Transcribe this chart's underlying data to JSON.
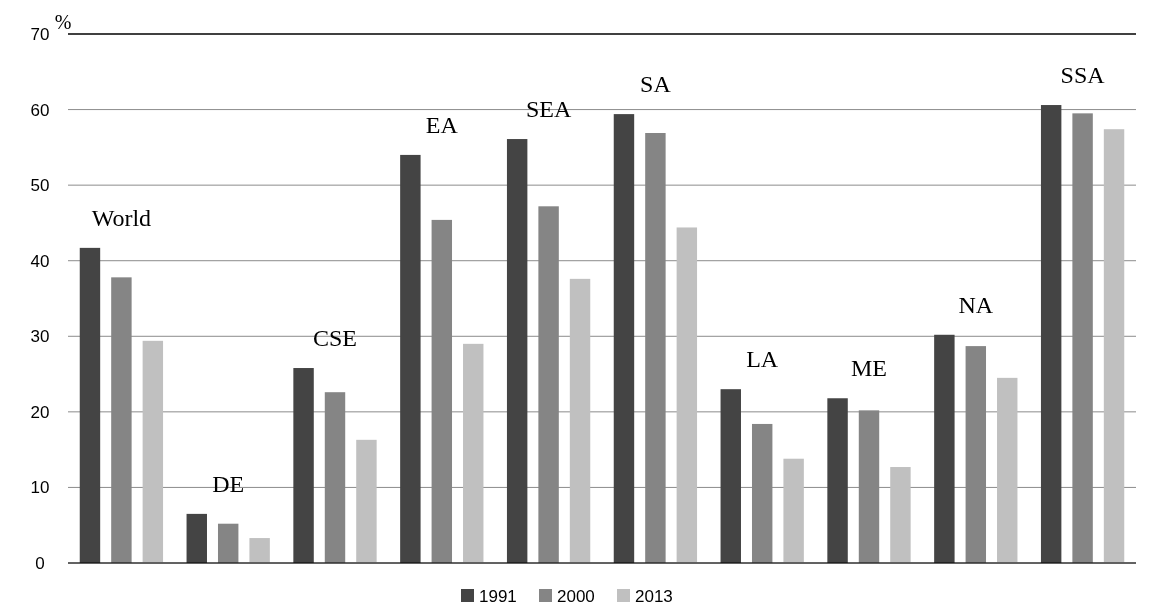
{
  "chart_data": {
    "type": "bar",
    "ylabel": "%",
    "categories": [
      "World",
      "DE",
      "CSE",
      "EA",
      "SEA",
      "SA",
      "LA",
      "ME",
      "NA",
      "SSA"
    ],
    "series": [
      {
        "name": "1991",
        "color": "#444444",
        "values": [
          41.7,
          6.5,
          25.8,
          54.0,
          56.1,
          59.4,
          23.0,
          21.8,
          30.2,
          60.6
        ]
      },
      {
        "name": "2000",
        "color": "#858585",
        "values": [
          37.8,
          5.2,
          22.6,
          45.4,
          47.2,
          56.9,
          18.4,
          20.2,
          28.7,
          59.5
        ]
      },
      {
        "name": "2013",
        "color": "#c0c0c0",
        "values": [
          29.4,
          3.3,
          16.3,
          29.0,
          37.6,
          44.4,
          13.8,
          12.7,
          24.5,
          57.4
        ]
      }
    ],
    "ylim": [
      0,
      70
    ],
    "yticks": [
      0,
      10,
      20,
      30,
      40,
      50,
      60,
      70
    ],
    "grid": "y",
    "legend": "bottom"
  }
}
